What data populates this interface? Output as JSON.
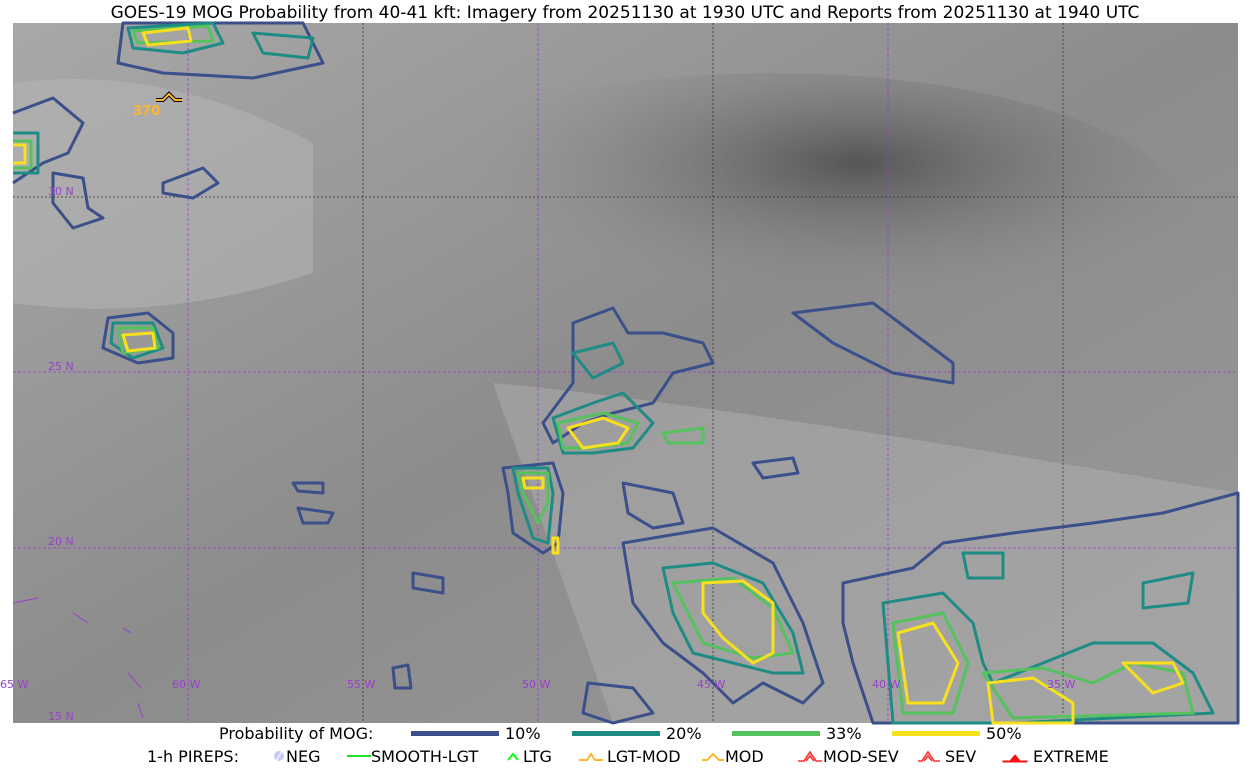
{
  "title": "GOES-19 MOG Probability from 40-41 kft: Imagery from 20251130 at 1930 UTC and Reports from 20251130 at 1940 UTC",
  "map": {
    "lat_labels": [
      "30 N",
      "25 N",
      "20 N",
      "15 N"
    ],
    "lon_labels": [
      "65 W",
      "60 W",
      "55 W",
      "50 W",
      "45 W",
      "40 W",
      "35 W"
    ],
    "grid_color": "#9a3fd0",
    "pirep": {
      "type": "MOG",
      "altitude_label": "370",
      "color": "#ffb52e"
    }
  },
  "legend": {
    "probability_label": "Probability of MOG:",
    "levels": [
      {
        "label": "10%",
        "color": "#3b4f8a"
      },
      {
        "label": "20%",
        "color": "#1e8c85"
      },
      {
        "label": "33%",
        "color": "#55c25e"
      },
      {
        "label": "50%",
        "color": "#f8e01e"
      }
    ],
    "pireps_label": "1-h PIREPS:",
    "pireps": [
      {
        "label": "NEG",
        "icon": "neg-icon",
        "color": "#c8c8ff"
      },
      {
        "label": "SMOOTH-LGT",
        "icon": "line-icon",
        "color": "#22e022"
      },
      {
        "label": "LTG",
        "icon": "caret-icon",
        "color": "#00ff00"
      },
      {
        "label": "LGT-MOD",
        "icon": "caret-bar-icon",
        "color": "#ffb52e"
      },
      {
        "label": "MOD",
        "icon": "caret-icon",
        "color": "#ffb52e"
      },
      {
        "label": "MOD-SEV",
        "icon": "double-caret-bar-icon",
        "color": "#ff3030"
      },
      {
        "label": "SEV",
        "icon": "double-caret-icon",
        "color": "#ff3030"
      },
      {
        "label": "EXTREME",
        "icon": "filled-caret-icon",
        "color": "#ff1010"
      }
    ]
  }
}
